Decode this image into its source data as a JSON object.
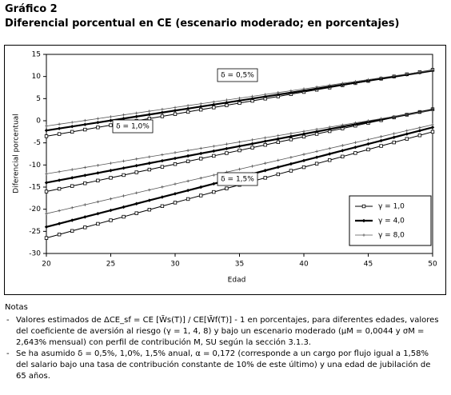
{
  "chart_data": {
    "type": "line",
    "label": "Gráfico 2",
    "title": "Diferencial porcentual en CE (escenario moderado; en porcentajes)",
    "x_label": "Edad",
    "y_label": "Diferencial porcentual",
    "x": [
      20,
      21,
      22,
      23,
      24,
      25,
      26,
      27,
      28,
      29,
      30,
      31,
      32,
      33,
      34,
      35,
      36,
      37,
      38,
      39,
      40,
      41,
      42,
      43,
      44,
      45,
      46,
      47,
      48,
      49,
      50
    ],
    "xlim": [
      20,
      50
    ],
    "xticks": [
      20,
      25,
      30,
      35,
      40,
      45,
      50
    ],
    "ylim": [
      -30,
      15
    ],
    "yticks": [
      -30,
      -25,
      -20,
      -15,
      -10,
      -5,
      0,
      5,
      10,
      15
    ],
    "legend_position": "lower right",
    "annotations": [
      "δ = 0,5%",
      "δ = 1,0%",
      "δ = 1,5%"
    ],
    "series": [
      {
        "name": "γ = 1,0",
        "color": "#000000",
        "marker": "square",
        "lines": [
          {
            "values": [
              -3.5,
              -3,
              -2.5,
              -2,
              -1.5,
              -1,
              -0.5,
              0,
              0.5,
              1,
              1.5,
              2,
              2.5,
              3,
              3.5,
              4,
              4.5,
              5,
              5.5,
              6,
              6.5,
              7,
              7.5,
              8,
              8.5,
              9,
              9.5,
              10,
              10.5,
              11,
              11.5
            ]
          },
          {
            "values": [
              -16,
              -15.38,
              -14.76,
              -14.14,
              -13.52,
              -12.9,
              -12.28,
              -11.66,
              -11.04,
              -10.42,
              -9.8,
              -9.18,
              -8.56,
              -7.94,
              -7.32,
              -6.7,
              -6.08,
              -5.46,
              -4.84,
              -4.22,
              -3.6,
              -2.98,
              -2.36,
              -1.74,
              -1.12,
              -0.5,
              0.12,
              0.74,
              1.36,
              1.98,
              2.6
            ]
          },
          {
            "values": [
              -26.5,
              -25.7,
              -24.9,
              -24.1,
              -23.3,
              -22.5,
              -21.7,
              -20.9,
              -20.1,
              -19.3,
              -18.5,
              -17.7,
              -16.9,
              -16.1,
              -15.3,
              -14.5,
              -13.7,
              -12.9,
              -12.1,
              -11.3,
              -10.5,
              -9.7,
              -8.9,
              -8.1,
              -7.3,
              -6.5,
              -5.7,
              -4.9,
              -4.1,
              -3.3,
              -2.5
            ]
          }
        ]
      },
      {
        "name": "γ = 4,0",
        "color": "#000000",
        "marker": "diamond",
        "lines": [
          {
            "values": [
              -2.2,
              -1.75,
              -1.3,
              -0.85,
              -0.4,
              0.05,
              0.5,
              0.95,
              1.4,
              1.85,
              2.3,
              2.75,
              3.2,
              3.65,
              4.1,
              4.55,
              5,
              5.45,
              5.9,
              6.35,
              6.8,
              7.25,
              7.7,
              8.15,
              8.6,
              9.05,
              9.5,
              9.95,
              10.4,
              10.85,
              11.3
            ]
          },
          {
            "values": [
              -14,
              -13.45,
              -12.9,
              -12.35,
              -11.8,
              -11.25,
              -10.7,
              -10.15,
              -9.6,
              -9.05,
              -8.5,
              -7.95,
              -7.4,
              -6.85,
              -6.3,
              -5.75,
              -5.2,
              -4.65,
              -4.1,
              -3.55,
              -3,
              -2.45,
              -1.9,
              -1.35,
              -0.8,
              -0.25,
              0.3,
              0.85,
              1.4,
              1.95,
              2.5
            ]
          },
          {
            "values": [
              -24,
              -23.25,
              -22.5,
              -21.75,
              -21,
              -20.25,
              -19.5,
              -18.75,
              -18,
              -17.25,
              -16.5,
              -15.75,
              -15,
              -14.25,
              -13.5,
              -12.75,
              -12,
              -11.25,
              -10.5,
              -9.75,
              -9,
              -8.25,
              -7.5,
              -6.75,
              -6,
              -5.25,
              -4.5,
              -3.75,
              -3,
              -2.25,
              -1.5
            ]
          }
        ]
      },
      {
        "name": "γ = 8,0",
        "color": "#555555",
        "marker": "cross",
        "lines": [
          {
            "values": [
              -1.2,
              -0.78,
              -0.36,
              0.06,
              0.48,
              0.9,
              1.32,
              1.74,
              2.16,
              2.58,
              3,
              3.42,
              3.84,
              4.26,
              4.68,
              5.1,
              5.52,
              5.94,
              6.36,
              6.78,
              7.2,
              7.62,
              8.04,
              8.46,
              8.88,
              9.3,
              9.72,
              10.14,
              10.56,
              10.98,
              11.4
            ]
          },
          {
            "values": [
              -12,
              -11.52,
              -11.04,
              -10.56,
              -10.08,
              -9.6,
              -9.12,
              -8.64,
              -8.16,
              -7.68,
              -7.2,
              -6.72,
              -6.24,
              -5.76,
              -5.28,
              -4.8,
              -4.32,
              -3.84,
              -3.36,
              -2.88,
              -2.4,
              -1.92,
              -1.44,
              -0.96,
              -0.48,
              0,
              0.48,
              0.96,
              1.44,
              1.92,
              2.4
            ]
          },
          {
            "values": [
              -21,
              -20.33,
              -19.66,
              -18.99,
              -18.32,
              -17.65,
              -16.98,
              -16.31,
              -15.64,
              -14.97,
              -14.3,
              -13.63,
              -12.96,
              -12.29,
              -11.62,
              -10.95,
              -10.28,
              -9.61,
              -8.94,
              -8.27,
              -7.6,
              -6.93,
              -6.26,
              -5.59,
              -4.92,
              -4.25,
              -3.58,
              -2.91,
              -2.24,
              -1.57,
              -0.9
            ]
          }
        ]
      }
    ]
  },
  "notes": {
    "heading": "Notas",
    "items": [
      "Valores estimados de ΔCE_sf = CE [W̃s(T)] / CE[W̃f(T)] - 1 en porcentajes, para diferentes edades, valores del coeficiente de aversión al riesgo (γ = 1, 4, 8) y bajo un escenario moderado (μM = 0,0044 y σM = 2,643% mensual) con perfil de contribución M, SU según la sección 3.1.3.",
      "Se ha asumido δ = 0,5%, 1,0%, 1,5% anual, α = 0,172 (corresponde a un cargo por flujo igual a 1,58% del salario bajo una tasa de contribución constante de 10% de este último) y una edad de jubilación de 65 años."
    ]
  }
}
